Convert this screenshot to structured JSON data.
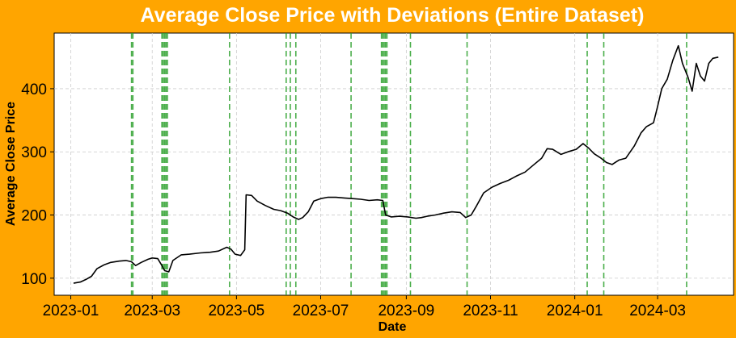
{
  "chart_data": {
    "type": "line",
    "title": "Average Close Price with Deviations (Entire Dataset)",
    "xlabel": "Date",
    "ylabel": "Average Close Price",
    "x_tick_labels": [
      "2023-01",
      "2023-03",
      "2023-05",
      "2023-07",
      "2023-09",
      "2023-11",
      "2024-01",
      "2024-03"
    ],
    "x_ticks": [
      "2023-01-01",
      "2023-03-01",
      "2023-05-01",
      "2023-07-01",
      "2023-09-01",
      "2023-11-01",
      "2024-01-01",
      "2024-03-01"
    ],
    "y_ticks": [
      100,
      200,
      300,
      400
    ],
    "xlim": [
      "2022-12-20",
      "2024-04-25"
    ],
    "ylim": [
      73,
      488
    ],
    "grid": true,
    "line_color": "#000000",
    "deviation_line_color": "#2ca02c",
    "background_color": "#FFA500",
    "series": [
      {
        "points": [
          [
            "2023-01-03",
            92
          ],
          [
            "2023-01-08",
            94
          ],
          [
            "2023-01-12",
            98
          ],
          [
            "2023-01-16",
            103
          ],
          [
            "2023-01-20",
            115
          ],
          [
            "2023-01-25",
            121
          ],
          [
            "2023-01-30",
            125
          ],
          [
            "2023-02-05",
            127
          ],
          [
            "2023-02-10",
            128
          ],
          [
            "2023-02-14",
            126
          ],
          [
            "2023-02-17",
            120
          ],
          [
            "2023-02-21",
            125
          ],
          [
            "2023-02-26",
            130
          ],
          [
            "2023-03-01",
            132
          ],
          [
            "2023-03-05",
            131
          ],
          [
            "2023-03-08",
            120
          ],
          [
            "2023-03-10",
            112
          ],
          [
            "2023-03-13",
            110
          ],
          [
            "2023-03-16",
            128
          ],
          [
            "2023-03-22",
            137
          ],
          [
            "2023-03-28",
            138
          ],
          [
            "2023-04-05",
            140
          ],
          [
            "2023-04-12",
            141
          ],
          [
            "2023-04-18",
            143
          ],
          [
            "2023-04-24",
            149
          ],
          [
            "2023-04-27",
            146
          ],
          [
            "2023-04-30",
            138
          ],
          [
            "2023-05-04",
            136
          ],
          [
            "2023-05-07",
            145
          ],
          [
            "2023-05-08",
            232
          ],
          [
            "2023-05-12",
            231
          ],
          [
            "2023-05-16",
            222
          ],
          [
            "2023-05-22",
            215
          ],
          [
            "2023-05-28",
            209
          ],
          [
            "2023-06-02",
            207
          ],
          [
            "2023-06-07",
            203
          ],
          [
            "2023-06-11",
            197
          ],
          [
            "2023-06-15",
            193
          ],
          [
            "2023-06-18",
            196
          ],
          [
            "2023-06-22",
            205
          ],
          [
            "2023-06-26",
            222
          ],
          [
            "2023-07-01",
            226
          ],
          [
            "2023-07-06",
            228
          ],
          [
            "2023-07-12",
            228
          ],
          [
            "2023-07-18",
            227
          ],
          [
            "2023-07-24",
            226
          ],
          [
            "2023-07-30",
            225
          ],
          [
            "2023-08-05",
            223
          ],
          [
            "2023-08-11",
            224
          ],
          [
            "2023-08-15",
            223
          ],
          [
            "2023-08-17",
            200
          ],
          [
            "2023-08-21",
            197
          ],
          [
            "2023-08-27",
            198
          ],
          [
            "2023-09-02",
            197
          ],
          [
            "2023-09-08",
            195
          ],
          [
            "2023-09-12",
            196
          ],
          [
            "2023-09-16",
            198
          ],
          [
            "2023-09-22",
            200
          ],
          [
            "2023-09-28",
            203
          ],
          [
            "2023-10-04",
            205
          ],
          [
            "2023-10-10",
            204
          ],
          [
            "2023-10-14",
            196
          ],
          [
            "2023-10-18",
            200
          ],
          [
            "2023-10-22",
            215
          ],
          [
            "2023-10-27",
            235
          ],
          [
            "2023-11-02",
            244
          ],
          [
            "2023-11-08",
            250
          ],
          [
            "2023-11-14",
            255
          ],
          [
            "2023-11-20",
            262
          ],
          [
            "2023-11-26",
            268
          ],
          [
            "2023-12-02",
            279
          ],
          [
            "2023-12-08",
            290
          ],
          [
            "2023-12-12",
            305
          ],
          [
            "2023-12-16",
            304
          ],
          [
            "2023-12-22",
            296
          ],
          [
            "2023-12-27",
            300
          ],
          [
            "2024-01-02",
            304
          ],
          [
            "2024-01-07",
            313
          ],
          [
            "2024-01-11",
            306
          ],
          [
            "2024-01-15",
            297
          ],
          [
            "2024-01-20",
            290
          ],
          [
            "2024-01-24",
            283
          ],
          [
            "2024-01-28",
            280
          ],
          [
            "2024-02-02",
            287
          ],
          [
            "2024-02-07",
            290
          ],
          [
            "2024-02-13",
            309
          ],
          [
            "2024-02-18",
            330
          ],
          [
            "2024-02-22",
            340
          ],
          [
            "2024-02-27",
            346
          ],
          [
            "2024-03-01",
            372
          ],
          [
            "2024-03-04",
            400
          ],
          [
            "2024-03-08",
            415
          ],
          [
            "2024-03-12",
            445
          ],
          [
            "2024-03-16",
            468
          ],
          [
            "2024-03-19",
            440
          ],
          [
            "2024-03-23",
            418
          ],
          [
            "2024-03-26",
            396
          ],
          [
            "2024-03-29",
            440
          ],
          [
            "2024-04-01",
            420
          ],
          [
            "2024-04-04",
            412
          ],
          [
            "2024-04-07",
            440
          ],
          [
            "2024-04-10",
            448
          ],
          [
            "2024-04-14",
            450
          ]
        ]
      }
    ],
    "deviation_dates": [
      "2023-02-14",
      "2023-02-15",
      "2023-03-08",
      "2023-03-09",
      "2023-03-10",
      "2023-03-11",
      "2023-03-12",
      "2023-04-26",
      "2023-06-06",
      "2023-06-09",
      "2023-06-13",
      "2023-07-23",
      "2023-08-14",
      "2023-08-15",
      "2023-08-16",
      "2023-08-17",
      "2023-08-18",
      "2023-09-04",
      "2023-10-15",
      "2024-01-10",
      "2024-01-22",
      "2024-03-22"
    ]
  }
}
